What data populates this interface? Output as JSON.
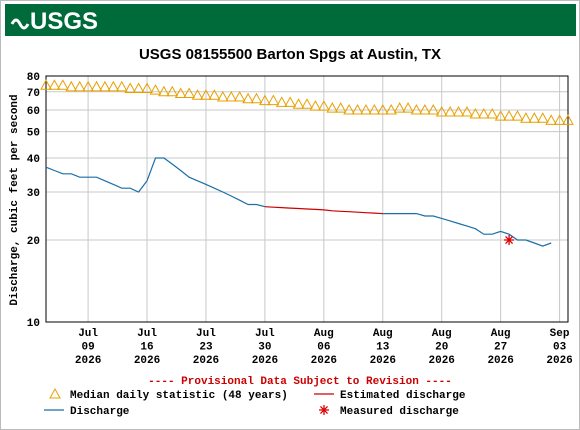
{
  "header": {
    "logo": "USGS"
  },
  "chart_data": {
    "type": "line",
    "title": "USGS 08155500 Barton Spgs at Austin, TX",
    "ylabel": "Discharge, cubic feet per second",
    "note": "---- Provisional Data Subject to Revision ----",
    "log_y": true,
    "grid": true,
    "ylim": [
      10,
      80
    ],
    "yticks": [
      10,
      20,
      30,
      40,
      50,
      60,
      70,
      80
    ],
    "xlim": [
      "2026-07-04",
      "2026-09-04"
    ],
    "xticks": [
      {
        "value": "2026-07-09",
        "label": "Jul 09 2026"
      },
      {
        "value": "2026-07-16",
        "label": "Jul 16 2026"
      },
      {
        "value": "2026-07-23",
        "label": "Jul 23 2026"
      },
      {
        "value": "2026-07-30",
        "label": "Jul 30 2026"
      },
      {
        "value": "2026-08-06",
        "label": "Aug 06 2026"
      },
      {
        "value": "2026-08-13",
        "label": "Aug 13 2026"
      },
      {
        "value": "2026-08-20",
        "label": "Aug 20 2026"
      },
      {
        "value": "2026-08-27",
        "label": "Aug 27 2026"
      },
      {
        "value": "2026-09-03",
        "label": "Sep 03 2026"
      }
    ],
    "x": [
      "2026-07-04",
      "2026-07-05",
      "2026-07-06",
      "2026-07-07",
      "2026-07-08",
      "2026-07-09",
      "2026-07-10",
      "2026-07-11",
      "2026-07-12",
      "2026-07-13",
      "2026-07-14",
      "2026-07-15",
      "2026-07-16",
      "2026-07-17",
      "2026-07-18",
      "2026-07-19",
      "2026-07-20",
      "2026-07-21",
      "2026-07-22",
      "2026-07-23",
      "2026-07-24",
      "2026-07-25",
      "2026-07-26",
      "2026-07-27",
      "2026-07-28",
      "2026-07-29",
      "2026-07-30",
      "2026-07-31",
      "2026-08-01",
      "2026-08-02",
      "2026-08-03",
      "2026-08-04",
      "2026-08-05",
      "2026-08-06",
      "2026-08-07",
      "2026-08-08",
      "2026-08-09",
      "2026-08-10",
      "2026-08-11",
      "2026-08-12",
      "2026-08-13",
      "2026-08-14",
      "2026-08-15",
      "2026-08-16",
      "2026-08-17",
      "2026-08-18",
      "2026-08-19",
      "2026-08-20",
      "2026-08-21",
      "2026-08-22",
      "2026-08-23",
      "2026-08-24",
      "2026-08-25",
      "2026-08-26",
      "2026-08-27",
      "2026-08-28",
      "2026-08-29",
      "2026-08-30",
      "2026-08-31",
      "2026-09-01",
      "2026-09-02",
      "2026-09-03",
      "2026-09-04"
    ],
    "series": [
      {
        "name": "Median daily statistic (48 years)",
        "color": "#e8a000",
        "style": "triangles",
        "values": [
          74,
          74,
          74,
          73,
          73,
          73,
          73,
          73,
          73,
          73,
          72,
          72,
          72,
          71,
          70,
          70,
          69,
          69,
          68,
          68,
          68,
          67,
          67,
          67,
          66,
          66,
          65,
          65,
          64,
          64,
          63,
          63,
          62,
          62,
          61,
          61,
          60,
          60,
          60,
          60,
          60,
          60,
          61,
          61,
          60,
          60,
          60,
          59,
          59,
          59,
          59,
          58,
          58,
          58,
          57,
          57,
          57,
          56,
          56,
          56,
          55,
          55,
          55
        ]
      },
      {
        "name": "Estimated discharge",
        "color": "#cc0000",
        "style": "line",
        "values": [
          null,
          null,
          null,
          null,
          null,
          null,
          null,
          null,
          null,
          null,
          null,
          null,
          null,
          null,
          null,
          null,
          null,
          null,
          null,
          null,
          null,
          null,
          null,
          null,
          null,
          null,
          26.5,
          26.4,
          26.3,
          26.2,
          26.1,
          26,
          25.9,
          25.8,
          25.6,
          25.5,
          25.4,
          25.3,
          25.2,
          25.1,
          25,
          null,
          null,
          null,
          null,
          null,
          null,
          null,
          null,
          null,
          null,
          null,
          null,
          null,
          null,
          null,
          null,
          null,
          null,
          null,
          null,
          null,
          null
        ]
      },
      {
        "name": "Discharge",
        "color": "#1a6fa8",
        "style": "line",
        "values": [
          37,
          36,
          35,
          35,
          34,
          34,
          34,
          33,
          32,
          31,
          31,
          30,
          33,
          40,
          40,
          38,
          36,
          34,
          33,
          32,
          31,
          30,
          29,
          28,
          27,
          27,
          26.5,
          null,
          null,
          null,
          null,
          null,
          null,
          null,
          null,
          null,
          null,
          null,
          null,
          null,
          25,
          25,
          25,
          25,
          25,
          24.5,
          24.5,
          24,
          23.5,
          23,
          22.5,
          22,
          21,
          21,
          21.5,
          21,
          20,
          20,
          19.5,
          19,
          19.5,
          null,
          null
        ]
      },
      {
        "name": "Measured discharge",
        "color": "#dd0000",
        "style": "asterisk",
        "x": [
          "2026-08-28"
        ],
        "values": [
          20
        ]
      }
    ]
  }
}
